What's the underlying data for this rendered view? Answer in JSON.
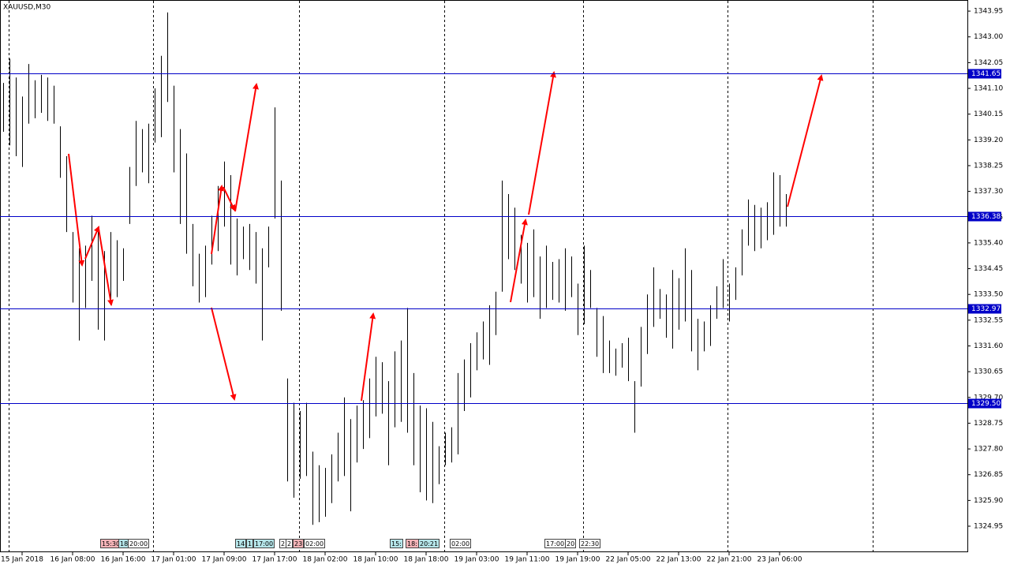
{
  "chart_data": {
    "type": "ohlc",
    "title": "XAUUSD,M30",
    "categories": [
      null,
      null,
      null,
      "15 Jan 2018",
      null,
      null,
      null,
      null,
      null,
      null,
      null,
      "16 Jan 08:00",
      null,
      null,
      null,
      null,
      null,
      null,
      null,
      "16 Jan 16:00",
      null,
      null,
      null,
      null,
      null,
      null,
      null,
      "17 Jan 01:00",
      null,
      null,
      null,
      null,
      null,
      null,
      null,
      "17 Jan 09:00",
      null,
      null,
      null,
      null,
      null,
      null,
      null,
      "17 Jan 17:00",
      null,
      null,
      null,
      null,
      null,
      null,
      null,
      "18 Jan 02:00",
      null,
      null,
      null,
      null,
      null,
      null,
      null,
      "18 Jan 10:00",
      null,
      null,
      null,
      null,
      null,
      null,
      null,
      "18 Jan 18:00",
      null,
      null,
      null,
      null,
      null,
      null,
      null,
      "19 Jan 03:00",
      null,
      null,
      null,
      null,
      null,
      null,
      null,
      "19 Jan 11:00",
      null,
      null,
      null,
      null,
      null,
      null,
      null,
      "19 Jan 19:00",
      null,
      null,
      null,
      null,
      null,
      null,
      null,
      "22 Jan 05:00",
      null,
      null,
      null,
      null,
      null,
      null,
      null,
      "22 Jan 13:00",
      null,
      null,
      null,
      null,
      null,
      null,
      null,
      "22 Jan 21:00",
      null,
      null,
      null,
      null,
      null,
      null,
      null,
      "23 Jan 06:00",
      null
    ],
    "series": [
      {
        "name": "High",
        "color": "#000000",
        "values": [
          1341.3,
          1342.2,
          1341.5,
          1340.8,
          1342.0,
          1341.4,
          1341.6,
          1341.5,
          1341.2,
          1339.7,
          1338.6,
          1335.8,
          1335.2,
          1335.3,
          1336.4,
          1336.0,
          1335.1,
          1335.8,
          1335.5,
          1335.2,
          1338.2,
          1339.9,
          1339.6,
          1339.8,
          1341.1,
          1342.3,
          1343.9,
          1341.2,
          1339.6,
          1338.7,
          1336.1,
          1335.0,
          1335.3,
          1336.4,
          1337.5,
          1338.4,
          1337.9,
          1336.3,
          1336.0,
          1336.1,
          1335.8,
          1335.2,
          1336.0,
          1340.4,
          1337.7,
          1330.4,
          1329.5,
          1329.2,
          1329.5,
          1327.7,
          1327.2,
          1327.1,
          1327.6,
          1328.4,
          1329.7,
          1328.9,
          1329.4,
          1329.6,
          1330.4,
          1331.2,
          1331.0,
          1330.3,
          1331.4,
          1331.8,
          1333.0,
          1330.6,
          1329.4,
          1329.3,
          1328.8,
          1327.9,
          1328.4,
          1328.6,
          1330.6,
          1331.1,
          1331.7,
          1332.1,
          1332.5,
          1333.1,
          1333.6,
          1337.7,
          1337.2,
          1336.7,
          1335.7,
          1335.4,
          1335.9,
          1334.9,
          1335.3,
          1334.7,
          1334.8,
          1335.2,
          1334.9,
          1333.9,
          1335.3,
          1334.4,
          1333.0,
          1332.7,
          1331.8,
          1331.5,
          1331.7,
          1331.9,
          1330.3,
          1332.3,
          1333.5,
          1334.5,
          1333.7,
          1333.5,
          1334.4,
          1334.1,
          1335.2,
          1334.4,
          1332.6,
          1332.5,
          1333.1,
          1333.8,
          1334.8,
          1333.9,
          1334.5,
          1335.9,
          1337.0,
          1336.8,
          1336.7,
          1336.9,
          1338.0,
          1337.9,
          1337.2
        ]
      },
      {
        "name": "Low",
        "color": "#000000",
        "values": [
          1339.5,
          1339.0,
          1338.6,
          1338.2,
          1339.8,
          1340.0,
          1340.2,
          1339.9,
          1339.8,
          1337.8,
          1335.8,
          1333.2,
          1331.8,
          1333.0,
          1334.0,
          1332.2,
          1331.8,
          1333.1,
          1333.4,
          1334.0,
          1336.1,
          1337.5,
          1338.0,
          1337.6,
          1339.1,
          1339.3,
          1340.6,
          1338.0,
          1336.1,
          1335.0,
          1333.8,
          1333.2,
          1333.4,
          1334.6,
          1335.1,
          1336.0,
          1334.6,
          1334.2,
          1334.8,
          1334.4,
          1333.9,
          1331.8,
          1334.5,
          1336.3,
          1332.9,
          1326.6,
          1326.0,
          1326.7,
          1326.8,
          1325.0,
          1325.1,
          1325.3,
          1325.8,
          1326.6,
          1326.8,
          1325.5,
          1327.3,
          1327.8,
          1328.2,
          1329.0,
          1329.1,
          1327.2,
          1328.6,
          1328.8,
          1328.4,
          1327.2,
          1326.2,
          1325.9,
          1325.8,
          1326.5,
          1327.2,
          1327.3,
          1327.6,
          1329.2,
          1329.7,
          1330.7,
          1331.1,
          1330.9,
          1332.0,
          1333.6,
          1334.8,
          1334.4,
          1333.9,
          1333.2,
          1333.4,
          1332.6,
          1333.0,
          1333.3,
          1333.2,
          1332.9,
          1333.4,
          1332.0,
          1332.4,
          1333.0,
          1331.2,
          1330.6,
          1330.6,
          1330.5,
          1330.8,
          1330.3,
          1328.4,
          1330.1,
          1331.3,
          1332.3,
          1332.6,
          1331.9,
          1331.5,
          1332.2,
          1332.5,
          1331.4,
          1330.7,
          1331.4,
          1331.6,
          1332.6,
          1333.0,
          1332.5,
          1333.3,
          1334.2,
          1335.3,
          1335.1,
          1335.2,
          1335.5,
          1335.7,
          1336.0,
          1336.0
        ]
      }
    ],
    "ylim": [
      1323.99,
      1344.36
    ],
    "yticks": [
      1343.95,
      {
        "value": 1343.0,
        "label": "1343.00"
      },
      1342.05,
      {
        "value": 1341.1,
        "label": "1341.10"
      },
      1340.15,
      {
        "value": 1339.2,
        "label": "1339.20"
      },
      1338.25,
      {
        "value": 1337.3,
        "label": "1337.30"
      },
      1336.35,
      {
        "value": 1335.4,
        "label": "1335.40"
      },
      1334.45,
      {
        "value": 1333.5,
        "label": "1333.50"
      },
      1332.55,
      {
        "value": 1331.6,
        "label": "1331.60"
      },
      1330.65,
      {
        "value": 1329.7,
        "label": "1329.70"
      },
      1328.75,
      {
        "value": 1327.8,
        "label": "1327.80"
      },
      1326.85,
      {
        "value": 1325.9,
        "label": "1325.90"
      },
      1324.95
    ],
    "hlines": [
      1341.65,
      1336.38,
      1332.97,
      {
        "value": 1329.5,
        "label": "1329.50"
      }
    ],
    "hline_color": "#0000c8",
    "markers": [
      "15:30",
      "18",
      "20:00",
      "14",
      "1",
      "17:00",
      "2",
      "2",
      "23",
      "02:00",
      "15:",
      "18:",
      "20:21",
      "02:00",
      "17:00",
      "20",
      "22:30"
    ]
  }
}
